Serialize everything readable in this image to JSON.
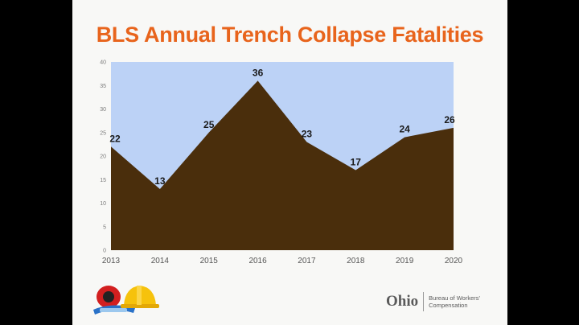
{
  "chart_data": {
    "type": "area",
    "title": "BLS Annual Trench Collapse Fatalities",
    "categories": [
      "2013",
      "2014",
      "2015",
      "2016",
      "2017",
      "2018",
      "2019",
      "2020"
    ],
    "series": [
      {
        "values": [
          22,
          13,
          25,
          36,
          23,
          17,
          24,
          26
        ]
      }
    ],
    "data_labels": [
      "22",
      "13",
      "25",
      "36",
      "23",
      "17",
      "24",
      "26"
    ],
    "y_ticks": [
      "0",
      "5",
      "10",
      "15",
      "20",
      "25",
      "30",
      "35",
      "40"
    ],
    "ylim": [
      0,
      40
    ],
    "grid": false,
    "legend": "none",
    "colors": {
      "fill": "#4a2e0c",
      "plot_background": "#bcd2f6",
      "title": "#e8641c"
    }
  },
  "footer": {
    "logo_word": "Ohio",
    "logo_line1": "Bureau of Workers'",
    "logo_line2": "Compensation"
  },
  "icons": {
    "safety_gear": "hard-hat-and-goggles-icon"
  }
}
